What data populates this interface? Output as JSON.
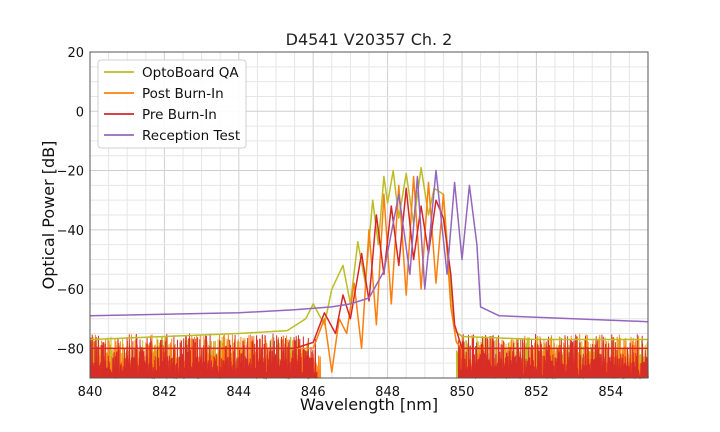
{
  "chart_data": {
    "type": "line",
    "title": "D4541 V20357 Ch. 2",
    "xlabel": "Wavelength [nm]",
    "ylabel": "Optical Power [dB]",
    "xlim": [
      840,
      855
    ],
    "ylim": [
      -90,
      20
    ],
    "xticks": [
      840,
      842,
      844,
      846,
      848,
      850,
      852,
      854
    ],
    "yticks": [
      20,
      0,
      -20,
      -40,
      -60,
      -80
    ],
    "xtick_labels": [
      "840",
      "842",
      "844",
      "846",
      "848",
      "850",
      "852",
      "854"
    ],
    "ytick_labels": [
      "20",
      "0",
      "−20",
      "−40",
      "−60",
      "−80"
    ],
    "grid": true,
    "legend_position": "top-left",
    "noise_floor_note": "dense noise between about -90 and -74 dB outside the emission band",
    "series": [
      {
        "name": "OptoBoard QA",
        "color": "#bcbd22",
        "x": [
          840,
          842,
          844,
          845.3,
          845.8,
          846.0,
          846.3,
          846.5,
          846.8,
          847.0,
          847.2,
          847.4,
          847.6,
          847.75,
          847.9,
          848.0,
          848.15,
          848.3,
          848.5,
          848.7,
          848.9,
          849.1,
          849.25,
          849.5,
          849.7,
          849.8,
          850,
          852,
          855
        ],
        "y": [
          -77,
          -76,
          -75,
          -74,
          -70,
          -65,
          -72,
          -60,
          -52,
          -65,
          -44,
          -58,
          -30,
          -45,
          -22,
          -31,
          -20,
          -36,
          -21,
          -38,
          -19,
          -35,
          -26,
          -28,
          -60,
          -74,
          -76,
          -77,
          -77
        ]
      },
      {
        "name": "Post Burn-In",
        "color": "#ff7f0e",
        "x": [
          840,
          846.0,
          846.3,
          846.5,
          846.7,
          846.9,
          847.1,
          847.3,
          847.5,
          847.7,
          847.9,
          848.1,
          848.3,
          848.5,
          848.7,
          848.9,
          849.1,
          849.3,
          849.5,
          849.7,
          849.85,
          850,
          855
        ],
        "y": [
          -80,
          -80,
          -70,
          -88,
          -70,
          -75,
          -58,
          -80,
          -40,
          -72,
          -28,
          -65,
          -25,
          -62,
          -22,
          -60,
          -24,
          -58,
          -28,
          -66,
          -78,
          -80,
          -80
        ]
      },
      {
        "name": "Pre Burn-In",
        "color": "#d62728",
        "x": [
          840,
          845.5,
          846.0,
          846.3,
          846.6,
          846.8,
          847.0,
          847.3,
          847.5,
          847.7,
          847.9,
          848.1,
          848.3,
          848.5,
          848.7,
          848.9,
          849.1,
          849.3,
          849.5,
          849.7,
          849.8,
          850,
          855
        ],
        "y": [
          -80,
          -80,
          -78,
          -68,
          -75,
          -62,
          -70,
          -48,
          -64,
          -35,
          -55,
          -32,
          -52,
          -26,
          -50,
          -32,
          -48,
          -30,
          -36,
          -55,
          -72,
          -80,
          -80
        ]
      },
      {
        "name": "Reception Test",
        "color": "#9467bd",
        "x": [
          840,
          844,
          845.5,
          846.5,
          847.0,
          847.5,
          847.9,
          848.3,
          848.6,
          848.8,
          849.0,
          849.3,
          849.6,
          849.8,
          850.0,
          850.2,
          850.4,
          850.5,
          851,
          853,
          855
        ],
        "y": [
          -69,
          -68,
          -67,
          -66,
          -65,
          -63,
          -54,
          -28,
          -55,
          -22,
          -60,
          -20,
          -55,
          -24,
          -50,
          -25,
          -45,
          -66,
          -69,
          -70,
          -71
        ]
      }
    ]
  }
}
